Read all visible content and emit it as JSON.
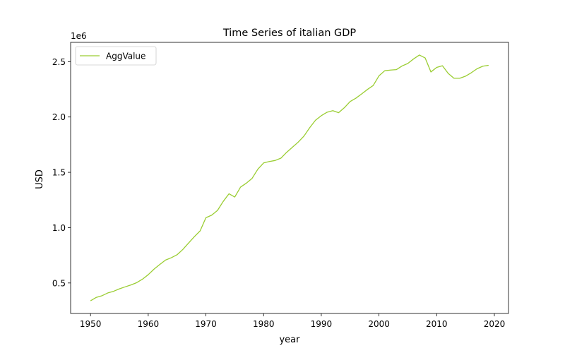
{
  "chart_data": {
    "type": "line",
    "title": "Time Series of italian GDP",
    "xlabel": "year",
    "ylabel": "USD",
    "y_offset_label": "1e6",
    "x_ticks": [
      1950,
      1960,
      1970,
      1980,
      1990,
      2000,
      2010,
      2020
    ],
    "y_ticks": [
      0.5,
      1.0,
      1.5,
      2.0,
      2.5
    ],
    "y_tick_labels": [
      "0.5",
      "1.0",
      "1.5",
      "2.0",
      "2.5"
    ],
    "xlim": [
      1946.55,
      2022.45
    ],
    "ylim_scaled": [
      0.2245,
      2.6745
    ],
    "y_scale": 1000000,
    "grid": false,
    "legend_position": "upper-left",
    "series": [
      {
        "name": "AggValue",
        "color": "#9acd32",
        "x": [
          1950,
          1951,
          1952,
          1953,
          1954,
          1955,
          1956,
          1957,
          1958,
          1959,
          1960,
          1961,
          1962,
          1963,
          1964,
          1965,
          1966,
          1967,
          1968,
          1969,
          1970,
          1971,
          1972,
          1973,
          1974,
          1975,
          1976,
          1977,
          1978,
          1979,
          1980,
          1981,
          1982,
          1983,
          1984,
          1985,
          1986,
          1987,
          1988,
          1989,
          1990,
          1991,
          1992,
          1993,
          1994,
          1995,
          1996,
          1997,
          1998,
          1999,
          2000,
          2001,
          2002,
          2003,
          2004,
          2005,
          2006,
          2007,
          2008,
          2009,
          2010,
          2011,
          2012,
          2013,
          2014,
          2015,
          2016,
          2017,
          2018,
          2019
        ],
        "values": [
          339000,
          370000,
          385000,
          410000,
          425000,
          447000,
          465000,
          482000,
          503000,
          534000,
          575000,
          625000,
          667000,
          707000,
          728000,
          755000,
          803000,
          861000,
          919000,
          971000,
          1090000,
          1113000,
          1155000,
          1237000,
          1306000,
          1277000,
          1366000,
          1402000,
          1445000,
          1528000,
          1585000,
          1598000,
          1607000,
          1628000,
          1681000,
          1727000,
          1773000,
          1828000,
          1904000,
          1971000,
          2012000,
          2043000,
          2057000,
          2039000,
          2084000,
          2140000,
          2170000,
          2209000,
          2249000,
          2285000,
          2372000,
          2418000,
          2424000,
          2428000,
          2461000,
          2484000,
          2525000,
          2560000,
          2534000,
          2407000,
          2448000,
          2463000,
          2394000,
          2350000,
          2350000,
          2369000,
          2400000,
          2436000,
          2459000,
          2467000
        ]
      }
    ]
  }
}
